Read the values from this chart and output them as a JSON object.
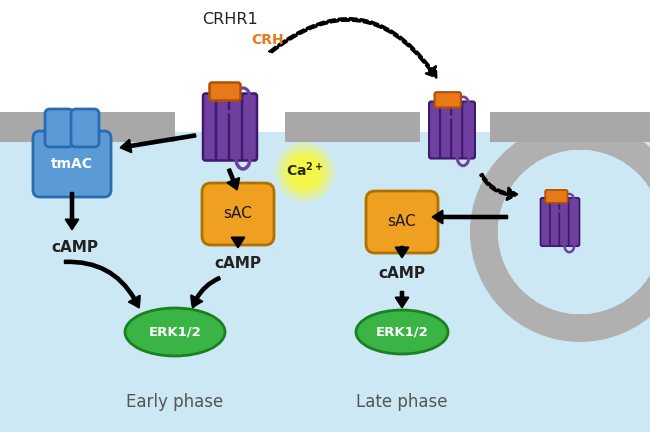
{
  "bg_color": "#cce8f4",
  "membrane_color": "#a8a8a8",
  "white_bg": "#ffffff",
  "receptor_color": "#7040a0",
  "receptor_edge": "#3d1a6e",
  "receptor_orange": "#e8791a",
  "receptor_orange_edge": "#b05000",
  "tmac_color": "#5b9bd5",
  "tmac_edge": "#2a6ab0",
  "sac_color": "#f0a020",
  "sac_edge": "#b07000",
  "erk_color": "#3ab545",
  "erk_edge": "#1a8020",
  "endo_gray": "#b0b0b0",
  "ca_yellow": "#f8f840",
  "crh_color": "#e8791a",
  "text_color": "#222222",
  "phase_text_color": "#555555",
  "labels": {
    "crhr1": "CRHR1",
    "crh": "CRH",
    "tmac": "tmAC",
    "sac": "sAC",
    "camp": "cAMP",
    "ca": "Ca$^{2+}$",
    "erk": "ERK1/2",
    "early": "Early phase",
    "late": "Late phase"
  }
}
